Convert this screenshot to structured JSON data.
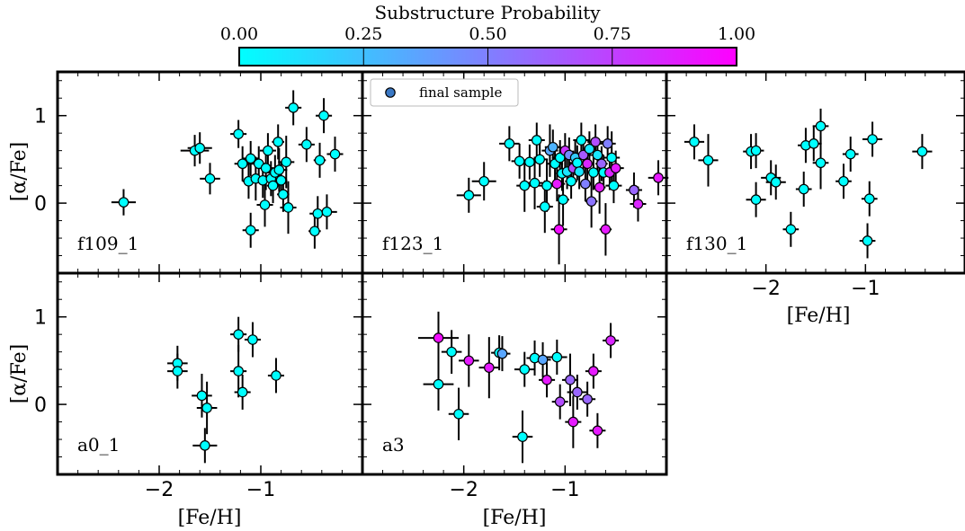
{
  "colorbar": {
    "label": "Substructure Probability",
    "ticks": [
      0.0,
      0.25,
      0.5,
      0.75,
      1.0
    ],
    "tick_labels": [
      "0.00",
      "0.25",
      "0.50",
      "0.75",
      "1.00"
    ],
    "color_low": "#00ffff",
    "color_high": "#ff00ff"
  },
  "legend": {
    "label": "final sample",
    "marker_color": "#3a78c4",
    "placement": "top"
  },
  "axes": {
    "xlabel": "[Fe/H]",
    "ylabel": "[α/Fe]",
    "xlim": [
      -3.0,
      0.0
    ],
    "ylim": [
      -0.8,
      1.5
    ],
    "xticks": [
      -2,
      -1
    ],
    "xtick_labels": [
      "−2",
      "−1"
    ],
    "yticks": [
      0,
      1
    ],
    "ytick_labels": [
      "0",
      "1"
    ]
  },
  "chart_data": [
    {
      "type": "scatter",
      "panel": "f109_1",
      "points": [
        [
          -2.35,
          0.01,
          0.12,
          0.15,
          0
        ],
        [
          -1.65,
          0.6,
          0.14,
          0.18,
          0
        ],
        [
          -1.6,
          0.63,
          0.12,
          0.18,
          0
        ],
        [
          -1.5,
          0.28,
          0.1,
          0.18,
          0
        ],
        [
          -1.22,
          0.79,
          0.08,
          0.16,
          0
        ],
        [
          -1.18,
          0.45,
          0.08,
          0.2,
          0
        ],
        [
          -1.12,
          0.25,
          0.06,
          0.2,
          0
        ],
        [
          -1.1,
          0.51,
          0.08,
          0.2,
          0
        ],
        [
          -1.1,
          -0.31,
          0.08,
          0.2,
          0
        ],
        [
          -1.05,
          0.28,
          0.06,
          0.25,
          0
        ],
        [
          -1.02,
          0.45,
          0.08,
          0.2,
          0
        ],
        [
          -0.98,
          0.26,
          0.08,
          0.2,
          0
        ],
        [
          -0.96,
          -0.02,
          0.08,
          0.25,
          0
        ],
        [
          -0.95,
          0.4,
          0.08,
          0.25,
          0
        ],
        [
          -0.93,
          0.6,
          0.08,
          0.2,
          0
        ],
        [
          -0.9,
          0.28,
          0.06,
          0.2,
          0
        ],
        [
          -0.88,
          0.2,
          0.06,
          0.2,
          0
        ],
        [
          -0.86,
          0.35,
          0.08,
          0.2,
          0
        ],
        [
          -0.83,
          0.7,
          0.06,
          0.2,
          0
        ],
        [
          -0.82,
          0.38,
          0.08,
          0.25,
          0
        ],
        [
          -0.8,
          0.26,
          0.06,
          0.2,
          0
        ],
        [
          -0.78,
          0.1,
          0.06,
          0.2,
          0
        ],
        [
          -0.75,
          0.47,
          0.08,
          0.3,
          0
        ],
        [
          -0.73,
          -0.05,
          0.08,
          0.3,
          0
        ],
        [
          -0.68,
          1.09,
          0.08,
          0.2,
          0
        ],
        [
          -0.55,
          0.67,
          0.08,
          0.2,
          0
        ],
        [
          -0.47,
          -0.32,
          0.06,
          0.2,
          0
        ],
        [
          -0.44,
          -0.12,
          0.08,
          0.2,
          0
        ],
        [
          -0.42,
          0.49,
          0.06,
          0.2,
          0
        ],
        [
          -0.38,
          1.0,
          0.08,
          0.2,
          0
        ],
        [
          -0.35,
          -0.1,
          0.1,
          0.2,
          0
        ],
        [
          -0.27,
          0.56,
          0.08,
          0.2,
          0
        ]
      ]
    },
    {
      "type": "scatter",
      "panel": "f123_1",
      "points": [
        [
          -1.95,
          0.09,
          0.12,
          0.2,
          0
        ],
        [
          -1.8,
          0.25,
          0.12,
          0.22,
          0
        ],
        [
          -1.55,
          0.68,
          0.1,
          0.2,
          0
        ],
        [
          -1.45,
          0.48,
          0.08,
          0.2,
          0
        ],
        [
          -1.4,
          0.2,
          0.08,
          0.3,
          0
        ],
        [
          -1.35,
          0.47,
          0.1,
          0.2,
          0
        ],
        [
          -1.3,
          0.23,
          0.08,
          0.3,
          0
        ],
        [
          -1.28,
          0.72,
          0.08,
          0.2,
          0
        ],
        [
          -1.25,
          0.5,
          0.08,
          0.2,
          0
        ],
        [
          -1.2,
          -0.04,
          0.08,
          0.3,
          0
        ],
        [
          -1.18,
          0.2,
          0.08,
          0.3,
          0
        ],
        [
          -1.15,
          0.6,
          0.08,
          0.3,
          0.35
        ],
        [
          -1.12,
          0.64,
          0.08,
          0.2,
          0.3
        ],
        [
          -1.1,
          0.45,
          0.08,
          0.2,
          0
        ],
        [
          -1.08,
          0.22,
          0.08,
          0.2,
          0.9
        ],
        [
          -1.06,
          -0.3,
          0.08,
          0.4,
          0.95
        ],
        [
          -1.05,
          0.52,
          0.08,
          0.2,
          0
        ],
        [
          -1.03,
          0.34,
          0.06,
          0.2,
          0
        ],
        [
          -1.02,
          0.04,
          0.06,
          0.3,
          0
        ],
        [
          -1.0,
          0.6,
          0.06,
          0.2,
          0.8
        ],
        [
          -0.98,
          0.36,
          0.08,
          0.2,
          0.1
        ],
        [
          -0.96,
          0.55,
          0.06,
          0.2,
          0.45
        ],
        [
          -0.94,
          0.25,
          0.06,
          0.2,
          0
        ],
        [
          -0.92,
          0.4,
          0.06,
          0.2,
          0.7
        ],
        [
          -0.9,
          0.52,
          0.06,
          0.2,
          0.2
        ],
        [
          -0.88,
          0.46,
          0.08,
          0.2,
          0
        ],
        [
          -0.86,
          0.36,
          0.06,
          0.2,
          0.1
        ],
        [
          -0.84,
          0.72,
          0.08,
          0.2,
          0
        ],
        [
          -0.82,
          0.55,
          0.08,
          0.2,
          0.65
        ],
        [
          -0.8,
          0.22,
          0.06,
          0.2,
          0.5
        ],
        [
          -0.78,
          0.45,
          0.06,
          0.2,
          0.85
        ],
        [
          -0.76,
          0.62,
          0.06,
          0.2,
          0.1
        ],
        [
          -0.74,
          0.02,
          0.06,
          0.3,
          0.55
        ],
        [
          -0.72,
          0.35,
          0.06,
          0.2,
          0
        ],
        [
          -0.7,
          0.7,
          0.08,
          0.2,
          0.7
        ],
        [
          -0.68,
          0.55,
          0.06,
          0.2,
          0.1
        ],
        [
          -0.66,
          0.18,
          0.06,
          0.3,
          0.9
        ],
        [
          -0.64,
          0.45,
          0.06,
          0.2,
          0.6
        ],
        [
          -0.62,
          0.35,
          0.08,
          0.2,
          0
        ],
        [
          -0.6,
          -0.3,
          0.06,
          0.3,
          0.9
        ],
        [
          -0.58,
          0.68,
          0.08,
          0.2,
          0.5
        ],
        [
          -0.56,
          0.35,
          0.08,
          0.2,
          0.85
        ],
        [
          -0.54,
          0.52,
          0.08,
          0.3,
          0
        ],
        [
          -0.52,
          0.2,
          0.08,
          0.2,
          0
        ],
        [
          -0.5,
          0.4,
          0.08,
          0.2,
          0.9
        ],
        [
          -0.32,
          0.15,
          0.08,
          0.2,
          0.6
        ],
        [
          -0.28,
          -0.01,
          0.08,
          0.2,
          0.85
        ],
        [
          -0.08,
          0.29,
          0.1,
          0.2,
          0.9
        ]
      ]
    },
    {
      "type": "scatter",
      "panel": "f130_1",
      "points": [
        [
          -2.72,
          0.7,
          0.1,
          0.2,
          0
        ],
        [
          -2.58,
          0.49,
          0.1,
          0.3,
          0
        ],
        [
          -2.15,
          0.59,
          0.08,
          0.2,
          0
        ],
        [
          -2.1,
          0.6,
          0.08,
          0.2,
          0
        ],
        [
          -2.1,
          0.04,
          0.1,
          0.2,
          0
        ],
        [
          -1.95,
          0.29,
          0.1,
          0.2,
          0
        ],
        [
          -1.9,
          0.24,
          0.1,
          0.2,
          0
        ],
        [
          -1.75,
          -0.3,
          0.08,
          0.2,
          0
        ],
        [
          -1.62,
          0.16,
          0.08,
          0.2,
          0
        ],
        [
          -1.6,
          0.66,
          0.08,
          0.2,
          0
        ],
        [
          -1.52,
          0.68,
          0.08,
          0.2,
          0
        ],
        [
          -1.45,
          0.88,
          0.08,
          0.2,
          0
        ],
        [
          -1.45,
          0.46,
          0.08,
          0.3,
          0
        ],
        [
          -1.22,
          0.25,
          0.08,
          0.2,
          0
        ],
        [
          -1.15,
          0.56,
          0.08,
          0.2,
          0
        ],
        [
          -0.98,
          -0.43,
          0.08,
          0.2,
          0
        ],
        [
          -0.96,
          0.05,
          0.08,
          0.2,
          0
        ],
        [
          -0.93,
          0.73,
          0.1,
          0.2,
          0
        ],
        [
          -0.43,
          0.59,
          0.1,
          0.2,
          0
        ]
      ]
    },
    {
      "type": "scatter",
      "panel": "a0_1",
      "points": [
        [
          -1.82,
          0.47,
          0.1,
          0.2,
          0
        ],
        [
          -1.82,
          0.38,
          0.1,
          0.2,
          0
        ],
        [
          -1.58,
          0.1,
          0.1,
          0.25,
          0
        ],
        [
          -1.53,
          -0.04,
          0.1,
          0.3,
          0
        ],
        [
          -1.55,
          -0.47,
          0.12,
          0.2,
          0
        ],
        [
          -1.22,
          0.8,
          0.08,
          0.2,
          0
        ],
        [
          -1.22,
          0.38,
          0.08,
          0.3,
          0
        ],
        [
          -1.18,
          0.14,
          0.08,
          0.2,
          0
        ],
        [
          -1.08,
          0.74,
          0.08,
          0.2,
          0
        ],
        [
          -0.85,
          0.33,
          0.08,
          0.2,
          0
        ]
      ]
    },
    {
      "type": "scatter",
      "panel": "a3",
      "points": [
        [
          -2.25,
          0.76,
          0.2,
          0.3,
          0.95
        ],
        [
          -2.25,
          0.23,
          0.15,
          0.3,
          0
        ],
        [
          -2.12,
          0.6,
          0.1,
          0.25,
          0
        ],
        [
          -2.05,
          -0.11,
          0.1,
          0.3,
          0
        ],
        [
          -1.95,
          0.5,
          0.1,
          0.3,
          0.9
        ],
        [
          -1.75,
          0.42,
          0.1,
          0.35,
          0.9
        ],
        [
          -1.65,
          0.59,
          0.08,
          0.2,
          0
        ],
        [
          -1.62,
          0.58,
          0.08,
          0.2,
          0.35
        ],
        [
          -1.42,
          -0.37,
          0.1,
          0.3,
          0
        ],
        [
          -1.4,
          0.4,
          0.1,
          0.2,
          0
        ],
        [
          -1.3,
          0.53,
          0.08,
          0.2,
          0
        ],
        [
          -1.22,
          0.51,
          0.08,
          0.2,
          0.35
        ],
        [
          -1.18,
          0.28,
          0.08,
          0.2,
          0.9
        ],
        [
          -1.08,
          0.54,
          0.1,
          0.2,
          0
        ],
        [
          -1.05,
          0.03,
          0.08,
          0.2,
          0.7
        ],
        [
          -0.95,
          0.28,
          0.08,
          0.3,
          0.6
        ],
        [
          -0.92,
          -0.2,
          0.08,
          0.3,
          0.9
        ],
        [
          -0.88,
          0.14,
          0.1,
          0.2,
          0.6
        ],
        [
          -0.78,
          0.06,
          0.08,
          0.2,
          0.6
        ],
        [
          -0.72,
          0.38,
          0.08,
          0.2,
          0.9
        ],
        [
          -0.68,
          -0.3,
          0.08,
          0.2,
          0.9
        ],
        [
          -0.55,
          0.73,
          0.08,
          0.2,
          0.85
        ]
      ]
    }
  ]
}
